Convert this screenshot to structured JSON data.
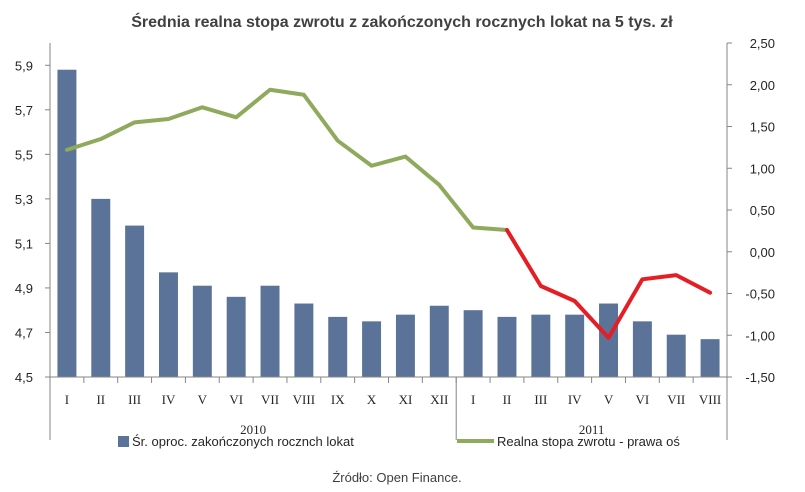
{
  "chart_data": {
    "type": "bar+line",
    "title": "Średnia realna stopa zwrotu z zakończonych rocznych lokat na 5 tys. zł",
    "categories": [
      "I",
      "II",
      "III",
      "IV",
      "V",
      "VI",
      "VII",
      "VIII",
      "IX",
      "X",
      "XI",
      "XII",
      "I",
      "II",
      "III",
      "IV",
      "V",
      "VI",
      "VII",
      "VIII"
    ],
    "year_groups": [
      {
        "label": "2010",
        "start": 0,
        "end": 11
      },
      {
        "label": "2011",
        "start": 12,
        "end": 19
      }
    ],
    "y_left": {
      "ylim": [
        4.5,
        6.0
      ],
      "ticks": [
        4.5,
        4.7,
        4.9,
        5.1,
        5.3,
        5.5,
        5.7,
        5.9
      ],
      "tick_labels": [
        "4,5",
        "4,7",
        "4,9",
        "5,1",
        "5,3",
        "5,5",
        "5,7",
        "5,9"
      ]
    },
    "y_right": {
      "ylim": [
        -1.5,
        2.5
      ],
      "ticks": [
        -1.5,
        -1.0,
        -0.5,
        0.0,
        0.5,
        1.0,
        1.5,
        2.0,
        2.5
      ],
      "tick_labels": [
        "-1,50",
        "-1,00",
        "-0,50",
        "0,00",
        "0,50",
        "1,00",
        "1,50",
        "2,00",
        "2,50"
      ]
    },
    "series": [
      {
        "name": "Śr. oproc. zakończonych rocznch lokat",
        "type": "bar",
        "axis": "left",
        "color": "#5b7399",
        "values": [
          5.88,
          5.3,
          5.18,
          4.97,
          4.91,
          4.86,
          4.91,
          4.83,
          4.77,
          4.75,
          4.78,
          4.82,
          4.8,
          4.77,
          4.78,
          4.78,
          4.83,
          4.75,
          4.69,
          4.67
        ]
      },
      {
        "name": "Realna stopa zwrotu - prawa oś",
        "type": "line",
        "axis": "right",
        "color": "#8faa5c",
        "negative_color": "#e51e25",
        "values": [
          1.22,
          1.35,
          1.55,
          1.59,
          1.73,
          1.61,
          1.94,
          1.88,
          1.33,
          1.03,
          1.14,
          0.8,
          0.29,
          0.26,
          -0.41,
          -0.59,
          -1.03,
          -0.33,
          -0.28,
          -0.49
        ]
      }
    ],
    "legend_position": "bottom",
    "source": "Źródło: Open Finance."
  }
}
